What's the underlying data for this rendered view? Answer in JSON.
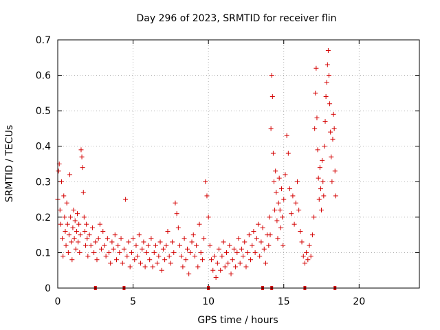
{
  "chart_data": {
    "type": "scatter",
    "title": "Day 296 of 2023, SRMTID for receiver flin",
    "xlabel": "GPS time / hours",
    "ylabel": "SRMTID / TECUs",
    "xlim": [
      0,
      24
    ],
    "ylim": [
      0,
      0.7
    ],
    "xticks": [
      0,
      5,
      10,
      15,
      20
    ],
    "yticks": [
      0,
      0.1,
      0.2,
      0.3,
      0.4,
      0.5,
      0.6,
      0.7
    ],
    "xtick_labels": [
      "0",
      "5",
      "10",
      "15",
      "20"
    ],
    "ytick_labels": [
      "0",
      "0.1",
      "0.2",
      "0.3",
      "0.4",
      "0.5",
      "0.6",
      "0.7"
    ],
    "grid": true,
    "marker": "+",
    "color": "#d40000",
    "axis_markers_x": [
      2.5,
      4.4,
      10.0,
      13.6,
      14.2,
      16.4,
      18.4
    ],
    "series": [
      {
        "name": "SRMTID",
        "points": [
          [
            0.0,
            0.25
          ],
          [
            0.05,
            0.33
          ],
          [
            0.1,
            0.35
          ],
          [
            0.15,
            0.22
          ],
          [
            0.2,
            0.18
          ],
          [
            0.25,
            0.3
          ],
          [
            0.3,
            0.14
          ],
          [
            0.35,
            0.09
          ],
          [
            0.4,
            0.26
          ],
          [
            0.45,
            0.2
          ],
          [
            0.5,
            0.16
          ],
          [
            0.55,
            0.12
          ],
          [
            0.6,
            0.24
          ],
          [
            0.65,
            0.18
          ],
          [
            0.7,
            0.1
          ],
          [
            0.75,
            0.15
          ],
          [
            0.8,
            0.32
          ],
          [
            0.85,
            0.2
          ],
          [
            0.9,
            0.13
          ],
          [
            0.95,
            0.08
          ],
          [
            1.0,
            0.17
          ],
          [
            1.05,
            0.22
          ],
          [
            1.1,
            0.14
          ],
          [
            1.15,
            0.19
          ],
          [
            1.2,
            0.11
          ],
          [
            1.25,
            0.16
          ],
          [
            1.3,
            0.21
          ],
          [
            1.35,
            0.13
          ],
          [
            1.4,
            0.18
          ],
          [
            1.45,
            0.1
          ],
          [
            1.5,
            0.15
          ],
          [
            1.55,
            0.39
          ],
          [
            1.6,
            0.37
          ],
          [
            1.65,
            0.34
          ],
          [
            1.7,
            0.27
          ],
          [
            1.75,
            0.2
          ],
          [
            1.8,
            0.16
          ],
          [
            1.85,
            0.12
          ],
          [
            1.9,
            0.18
          ],
          [
            1.95,
            0.14
          ],
          [
            2.0,
            0.09
          ],
          [
            2.1,
            0.15
          ],
          [
            2.2,
            0.12
          ],
          [
            2.3,
            0.17
          ],
          [
            2.4,
            0.1
          ],
          [
            2.5,
            0.13
          ],
          [
            2.6,
            0.08
          ],
          [
            2.7,
            0.14
          ],
          [
            2.8,
            0.18
          ],
          [
            2.9,
            0.11
          ],
          [
            3.0,
            0.16
          ],
          [
            3.1,
            0.12
          ],
          [
            3.2,
            0.09
          ],
          [
            3.3,
            0.14
          ],
          [
            3.4,
            0.1
          ],
          [
            3.5,
            0.07
          ],
          [
            3.6,
            0.13
          ],
          [
            3.7,
            0.11
          ],
          [
            3.8,
            0.15
          ],
          [
            3.9,
            0.08
          ],
          [
            4.0,
            0.12
          ],
          [
            4.1,
            0.1
          ],
          [
            4.2,
            0.14
          ],
          [
            4.3,
            0.07
          ],
          [
            4.4,
            0.11
          ],
          [
            4.5,
            0.25
          ],
          [
            4.6,
            0.09
          ],
          [
            4.7,
            0.13
          ],
          [
            4.8,
            0.06
          ],
          [
            4.9,
            0.1
          ],
          [
            5.0,
            0.14
          ],
          [
            5.1,
            0.08
          ],
          [
            5.2,
            0.12
          ],
          [
            5.3,
            0.09
          ],
          [
            5.4,
            0.15
          ],
          [
            5.5,
            0.07
          ],
          [
            5.6,
            0.11
          ],
          [
            5.7,
            0.13
          ],
          [
            5.8,
            0.06
          ],
          [
            5.9,
            0.1
          ],
          [
            6.0,
            0.12
          ],
          [
            6.1,
            0.08
          ],
          [
            6.2,
            0.14
          ],
          [
            6.3,
            0.06
          ],
          [
            6.4,
            0.1
          ],
          [
            6.5,
            0.12
          ],
          [
            6.6,
            0.07
          ],
          [
            6.7,
            0.09
          ],
          [
            6.8,
            0.13
          ],
          [
            6.9,
            0.05
          ],
          [
            7.0,
            0.11
          ],
          [
            7.1,
            0.08
          ],
          [
            7.2,
            0.12
          ],
          [
            7.3,
            0.16
          ],
          [
            7.4,
            0.09
          ],
          [
            7.5,
            0.07
          ],
          [
            7.6,
            0.13
          ],
          [
            7.7,
            0.1
          ],
          [
            7.8,
            0.24
          ],
          [
            7.9,
            0.21
          ],
          [
            8.0,
            0.17
          ],
          [
            8.1,
            0.12
          ],
          [
            8.2,
            0.09
          ],
          [
            8.3,
            0.06
          ],
          [
            8.4,
            0.14
          ],
          [
            8.5,
            0.08
          ],
          [
            8.6,
            0.11
          ],
          [
            8.7,
            0.04
          ],
          [
            8.8,
            0.1
          ],
          [
            8.9,
            0.13
          ],
          [
            9.0,
            0.15
          ],
          [
            9.1,
            0.09
          ],
          [
            9.2,
            0.12
          ],
          [
            9.3,
            0.06
          ],
          [
            9.4,
            0.18
          ],
          [
            9.5,
            0.1
          ],
          [
            9.6,
            0.08
          ],
          [
            9.7,
            0.14
          ],
          [
            9.8,
            0.3
          ],
          [
            9.9,
            0.26
          ],
          [
            10.0,
            0.2
          ],
          [
            10.1,
            0.12
          ],
          [
            10.2,
            0.08
          ],
          [
            10.3,
            0.05
          ],
          [
            10.4,
            0.09
          ],
          [
            10.5,
            0.03
          ],
          [
            10.6,
            0.07
          ],
          [
            10.7,
            0.11
          ],
          [
            10.8,
            0.05
          ],
          [
            10.9,
            0.09
          ],
          [
            11.0,
            0.13
          ],
          [
            11.1,
            0.06
          ],
          [
            11.2,
            0.1
          ],
          [
            11.3,
            0.07
          ],
          [
            11.4,
            0.12
          ],
          [
            11.5,
            0.04
          ],
          [
            11.6,
            0.08
          ],
          [
            11.7,
            0.11
          ],
          [
            11.8,
            0.06
          ],
          [
            11.9,
            0.1
          ],
          [
            12.0,
            0.14
          ],
          [
            12.1,
            0.07
          ],
          [
            12.2,
            0.11
          ],
          [
            12.3,
            0.09
          ],
          [
            12.4,
            0.13
          ],
          [
            12.5,
            0.06
          ],
          [
            12.6,
            0.1
          ],
          [
            12.7,
            0.15
          ],
          [
            12.8,
            0.08
          ],
          [
            12.9,
            0.12
          ],
          [
            13.0,
            0.16
          ],
          [
            13.1,
            0.1
          ],
          [
            13.2,
            0.14
          ],
          [
            13.3,
            0.18
          ],
          [
            13.4,
            0.09
          ],
          [
            13.5,
            0.13
          ],
          [
            13.6,
            0.17
          ],
          [
            13.7,
            0.11
          ],
          [
            13.8,
            0.07
          ],
          [
            13.9,
            0.15
          ],
          [
            14.0,
            0.12
          ],
          [
            14.05,
            0.2
          ],
          [
            14.1,
            0.15
          ],
          [
            14.15,
            0.45
          ],
          [
            14.2,
            0.6
          ],
          [
            14.25,
            0.54
          ],
          [
            14.3,
            0.38
          ],
          [
            14.35,
            0.3
          ],
          [
            14.4,
            0.22
          ],
          [
            14.45,
            0.33
          ],
          [
            14.5,
            0.27
          ],
          [
            14.55,
            0.19
          ],
          [
            14.6,
            0.14
          ],
          [
            14.65,
            0.24
          ],
          [
            14.7,
            0.31
          ],
          [
            14.75,
            0.22
          ],
          [
            14.8,
            0.17
          ],
          [
            14.85,
            0.28
          ],
          [
            14.9,
            0.2
          ],
          [
            14.95,
            0.12
          ],
          [
            15.0,
            0.25
          ],
          [
            15.1,
            0.32
          ],
          [
            15.2,
            0.43
          ],
          [
            15.3,
            0.38
          ],
          [
            15.4,
            0.28
          ],
          [
            15.5,
            0.21
          ],
          [
            15.6,
            0.26
          ],
          [
            15.7,
            0.18
          ],
          [
            15.8,
            0.24
          ],
          [
            15.9,
            0.3
          ],
          [
            16.0,
            0.22
          ],
          [
            16.1,
            0.16
          ],
          [
            16.2,
            0.13
          ],
          [
            16.3,
            0.09
          ],
          [
            16.4,
            0.07
          ],
          [
            16.5,
            0.1
          ],
          [
            16.6,
            0.08
          ],
          [
            16.7,
            0.12
          ],
          [
            16.8,
            0.09
          ],
          [
            16.9,
            0.15
          ],
          [
            17.0,
            0.2
          ],
          [
            17.05,
            0.45
          ],
          [
            17.1,
            0.55
          ],
          [
            17.15,
            0.62
          ],
          [
            17.2,
            0.48
          ],
          [
            17.25,
            0.39
          ],
          [
            17.3,
            0.31
          ],
          [
            17.35,
            0.25
          ],
          [
            17.4,
            0.34
          ],
          [
            17.45,
            0.28
          ],
          [
            17.5,
            0.22
          ],
          [
            17.55,
            0.36
          ],
          [
            17.6,
            0.3
          ],
          [
            17.65,
            0.26
          ],
          [
            17.7,
            0.4
          ],
          [
            17.75,
            0.47
          ],
          [
            17.8,
            0.54
          ],
          [
            17.85,
            0.58
          ],
          [
            17.9,
            0.63
          ],
          [
            17.95,
            0.67
          ],
          [
            18.0,
            0.6
          ],
          [
            18.05,
            0.52
          ],
          [
            18.1,
            0.44
          ],
          [
            18.15,
            0.37
          ],
          [
            18.2,
            0.3
          ],
          [
            18.25,
            0.42
          ],
          [
            18.3,
            0.49
          ],
          [
            18.35,
            0.45
          ],
          [
            18.4,
            0.33
          ],
          [
            18.45,
            0.26
          ]
        ]
      }
    ]
  }
}
